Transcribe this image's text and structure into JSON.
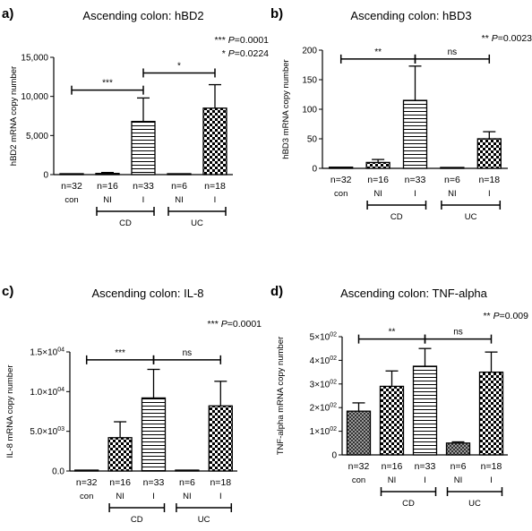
{
  "colors": {
    "axis": "#000000",
    "bar_edge": "#000000",
    "fill": "#ffffff"
  },
  "chart_data": [
    {
      "type": "bar",
      "panel_label": "a)",
      "title": "Ascending colon: hBD2",
      "ylabel": "hBD2 mRNA copy number",
      "ylim": [
        0,
        15000
      ],
      "ytick_labels": [
        "0",
        "5,000",
        "10,000",
        "15,000"
      ],
      "ytick_values": [
        0,
        5000,
        10000,
        15000
      ],
      "stats": [
        {
          "stars": "***",
          "p_prefix": "P",
          "p_value": "=0.0001"
        },
        {
          "stars": "*",
          "p_prefix": "P",
          "p_value": "=0.0224"
        }
      ],
      "bars": [
        {
          "n": "n=32",
          "label": "con",
          "value": 15,
          "error": 0,
          "pattern": "none"
        },
        {
          "n": "n=16",
          "label": "NI",
          "value": 150,
          "error": 120,
          "pattern": "check"
        },
        {
          "n": "n=33",
          "label": "I",
          "value": 6800,
          "error": 3000,
          "pattern": "hlines"
        },
        {
          "n": "n=6",
          "label": "NI",
          "value": 10,
          "error": 0,
          "pattern": "none"
        },
        {
          "n": "n=18",
          "label": "I",
          "value": 8500,
          "error": 3000,
          "pattern": "check"
        }
      ],
      "groups": [
        {
          "label": "CD",
          "from": 1,
          "to": 2
        },
        {
          "label": "UC",
          "from": 3,
          "to": 4
        }
      ],
      "sig_brackets": [
        {
          "from": 0,
          "to": 2,
          "text": "***",
          "y": 10800
        },
        {
          "from": 2,
          "to": 4,
          "text": "*",
          "y": 13000
        }
      ]
    },
    {
      "type": "bar",
      "panel_label": "b)",
      "title": "Ascending colon: hBD3",
      "ylabel": "hBD3 mRNA copy number",
      "ylim": [
        0,
        200
      ],
      "ytick_labels": [
        "0",
        "50",
        "100",
        "150",
        "200"
      ],
      "ytick_values": [
        0,
        50,
        100,
        150,
        200
      ],
      "stats": [
        {
          "stars": "**",
          "p_prefix": "P",
          "p_value": "=0.0023"
        }
      ],
      "bars": [
        {
          "n": "n=32",
          "label": "con",
          "value": 2,
          "error": 0,
          "pattern": "none"
        },
        {
          "n": "n=16",
          "label": "NI",
          "value": 10,
          "error": 5,
          "pattern": "check"
        },
        {
          "n": "n=33",
          "label": "I",
          "value": 115,
          "error": 58,
          "pattern": "hlines"
        },
        {
          "n": "n=6",
          "label": "NI",
          "value": 0,
          "error": 0,
          "pattern": "none"
        },
        {
          "n": "n=18",
          "label": "I",
          "value": 50,
          "error": 12,
          "pattern": "check"
        }
      ],
      "groups": [
        {
          "label": "CD",
          "from": 1,
          "to": 2
        },
        {
          "label": "UC",
          "from": 3,
          "to": 4
        }
      ],
      "sig_brackets": [
        {
          "from": 0,
          "to": 2,
          "text": "**",
          "y": 185
        },
        {
          "from": 2,
          "to": 4,
          "text": "ns",
          "y": 185
        }
      ]
    },
    {
      "type": "bar",
      "panel_label": "c)",
      "title": "Ascending colon: IL-8",
      "ylabel": "IL-8 mRNA copy number",
      "ylim": [
        0,
        15000
      ],
      "ytick_labels": [
        [
          "0.0",
          ""
        ],
        [
          "5.0×10",
          "03"
        ],
        [
          "1.0×10",
          "04"
        ],
        [
          "1.5×10",
          "04"
        ]
      ],
      "ytick_values": [
        0,
        5000,
        10000,
        15000
      ],
      "stats": [
        {
          "stars": "***",
          "p_prefix": "P",
          "p_value": "=0.0001"
        }
      ],
      "bars": [
        {
          "n": "n=32",
          "label": "con",
          "value": 10,
          "error": 0,
          "pattern": "none"
        },
        {
          "n": "n=16",
          "label": "NI",
          "value": 4200,
          "error": 2000,
          "pattern": "check"
        },
        {
          "n": "n=33",
          "label": "I",
          "value": 9200,
          "error": 3600,
          "pattern": "hlines"
        },
        {
          "n": "n=6",
          "label": "NI",
          "value": 10,
          "error": 0,
          "pattern": "none"
        },
        {
          "n": "n=18",
          "label": "I",
          "value": 8200,
          "error": 3100,
          "pattern": "check"
        }
      ],
      "groups": [
        {
          "label": "CD",
          "from": 1,
          "to": 2
        },
        {
          "label": "UC",
          "from": 3,
          "to": 4
        }
      ],
      "sig_brackets": [
        {
          "from": 0,
          "to": 2,
          "text": "***",
          "y": 14000
        },
        {
          "from": 2,
          "to": 4,
          "text": "ns",
          "y": 14000
        }
      ]
    },
    {
      "type": "bar",
      "panel_label": "d)",
      "title": "Ascending colon: TNF-alpha",
      "ylabel": "TNF-alpha mRNA copy number",
      "ylim": [
        0,
        500
      ],
      "ytick_labels": [
        [
          "0",
          ""
        ],
        [
          "1×10",
          "02"
        ],
        [
          "2×10",
          "02"
        ],
        [
          "3×10",
          "02"
        ],
        [
          "4×10",
          "02"
        ],
        [
          "5×10",
          "02"
        ]
      ],
      "ytick_values": [
        0,
        100,
        200,
        300,
        400,
        500
      ],
      "stats": [
        {
          "stars": "**",
          "p_prefix": "P",
          "p_value": "=0.009"
        }
      ],
      "bars": [
        {
          "n": "n=32",
          "label": "con",
          "value": 185,
          "error": 35,
          "pattern": "dense"
        },
        {
          "n": "n=16",
          "label": "NI",
          "value": 290,
          "error": 65,
          "pattern": "check"
        },
        {
          "n": "n=33",
          "label": "I",
          "value": 375,
          "error": 75,
          "pattern": "hlines"
        },
        {
          "n": "n=6",
          "label": "NI",
          "value": 50,
          "error": 5,
          "pattern": "dense"
        },
        {
          "n": "n=18",
          "label": "I",
          "value": 350,
          "error": 85,
          "pattern": "check"
        }
      ],
      "groups": [
        {
          "label": "CD",
          "from": 1,
          "to": 2
        },
        {
          "label": "UC",
          "from": 3,
          "to": 4
        }
      ],
      "sig_brackets": [
        {
          "from": 0,
          "to": 2,
          "text": "**",
          "y": 490
        },
        {
          "from": 2,
          "to": 4,
          "text": "ns",
          "y": 490
        }
      ]
    }
  ]
}
